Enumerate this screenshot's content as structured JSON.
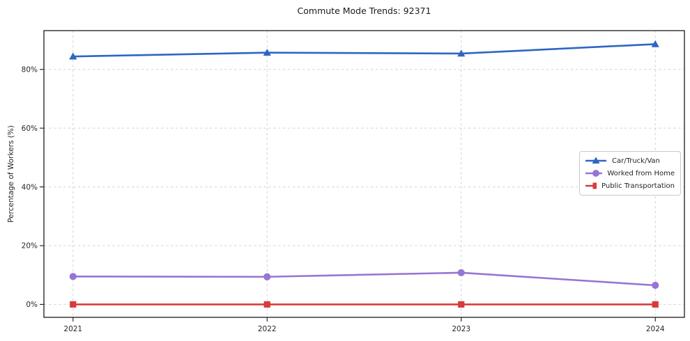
{
  "title": "Commute Mode Trends: 92371",
  "chart_data": {
    "type": "line",
    "title": "Commute Mode Trends: 92371",
    "xlabel": "",
    "ylabel": "Percentage of Workers (%)",
    "x": [
      2021,
      2022,
      2023,
      2024
    ],
    "xtick_labels": [
      "2021",
      "2022",
      "2023",
      "2024"
    ],
    "yticks": [
      0,
      20,
      40,
      60,
      80
    ],
    "ytick_labels": [
      "0%",
      "20%",
      "40%",
      "60%",
      "80%"
    ],
    "xlim": [
      2020.85,
      2024.15
    ],
    "ylim": [
      -4.4,
      93.2
    ],
    "grid": true,
    "grid_style": "dashed",
    "legend_position": "center-right",
    "series": [
      {
        "name": "Car/Truck/Van",
        "values": [
          84.4,
          85.7,
          85.4,
          88.6
        ],
        "color": "#2e66c3",
        "marker": "triangle"
      },
      {
        "name": "Worked from Home",
        "values": [
          9.5,
          9.4,
          10.8,
          6.5
        ],
        "color": "#9775d3",
        "marker": "circle"
      },
      {
        "name": "Public Transportation",
        "values": [
          0.0,
          0.0,
          0.0,
          0.0
        ],
        "color": "#d83b3b",
        "marker": "square"
      }
    ]
  }
}
